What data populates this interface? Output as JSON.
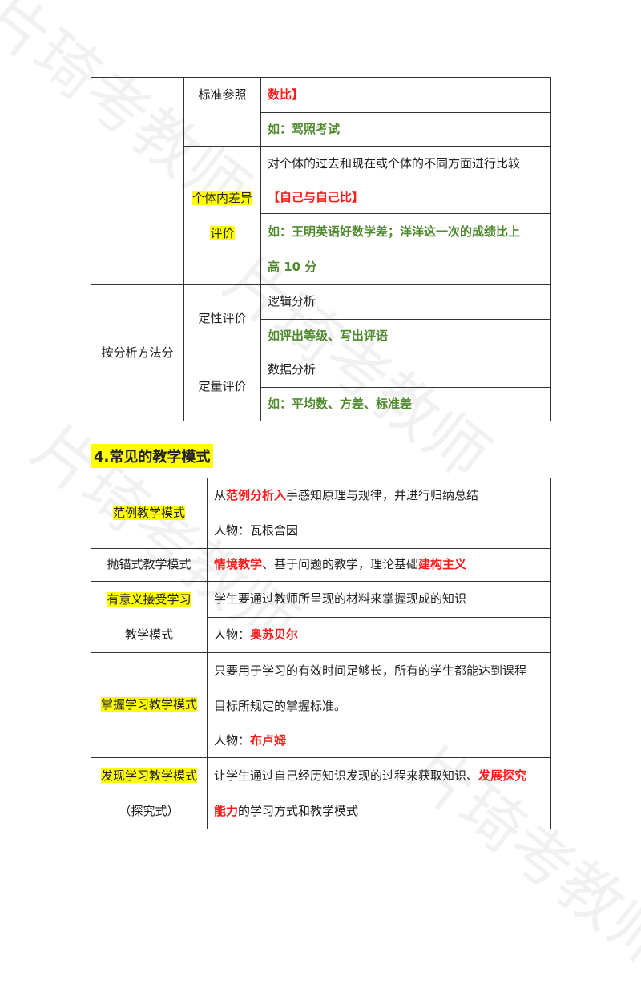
{
  "watermark": "片琦考教师",
  "table1": {
    "row_standard_label": "标准参照",
    "row_standard_line1": "数比】",
    "row_standard_line2": "如：驾照考试",
    "row_individual_label_part1": "个体内差异",
    "row_individual_label_part2": "评价",
    "row_individual_desc": "对个体的过去和现在或个体的不同方面进行比较",
    "row_individual_bracket": "【自己与自己比】",
    "row_individual_example_line1": "如：王明英语好数学差；洋洋这一次的成绩比上",
    "row_individual_example_line2": "高 10 分",
    "group_label": "按分析方法分",
    "qual_label": "定性评价",
    "qual_desc": "逻辑分析",
    "qual_example": "如评出等级、写出评语",
    "quant_label": "定量评价",
    "quant_desc": "数据分析",
    "quant_example": "如：平均数、方差、标准差"
  },
  "section_title": "4.常见的教学模式",
  "table2": {
    "r1_label": "范例教学模式",
    "r1_line1_pre": "从",
    "r1_line1_red": "范例分析入",
    "r1_line1_post": "手感知原理与规律，并进行归纳总结",
    "r1_line2": "人物：瓦根舍因",
    "r2_label": "抛锚式教学模式",
    "r2_red1": "情境教学",
    "r2_mid": "、基于问题的教学，理论基础",
    "r2_red2": "建构主义",
    "r3_label_part1": "有意义接受学习",
    "r3_label_part2": "教学模式",
    "r3_line1": "学生要通过教师所呈现的材料来掌握现成的知识",
    "r3_line2_pre": "人物：",
    "r3_line2_red": "奥苏贝尔",
    "r4_label": "掌握学习教学模式",
    "r4_line1": "只要用于学习的有效时间足够长，所有的学生都能达到课程",
    "r4_line2": "目标所规定的掌握标准。",
    "r4_line3_pre": "人物：",
    "r4_line3_red": "布卢姆",
    "r5_label_part1": "发现学习教学模式",
    "r5_label_part2": "（探究式）",
    "r5_line1_pre": "让学生通过自己经历知识发现的过程来获取知识、",
    "r5_line1_red": "发展探究",
    "r5_line2_red": "能力",
    "r5_line2_post": "的学习方式和教学模式"
  }
}
